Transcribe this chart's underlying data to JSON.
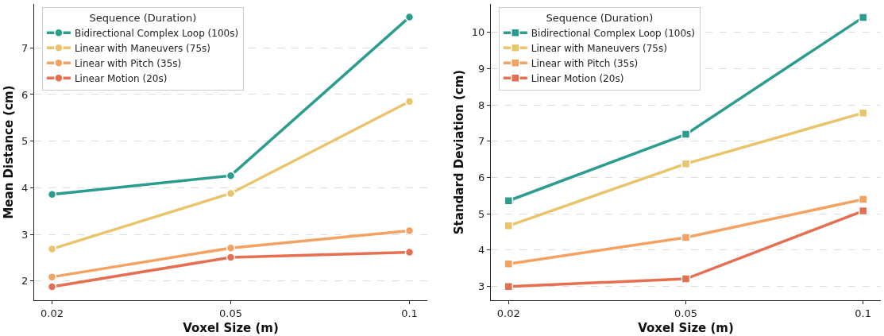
{
  "chart_data": [
    {
      "type": "line",
      "xlabel": "Voxel Size (m)",
      "ylabel": "Mean Distance (cm)",
      "legend_title": "Sequence (Duration)",
      "categories": [
        "0.02",
        "0.05",
        "0.1"
      ],
      "ylim": [
        1.59,
        7.94
      ],
      "yticks": [
        2,
        3,
        4,
        5,
        6,
        7
      ],
      "grid": "y",
      "legend": "top left",
      "marker": "circle",
      "line_style": "solid",
      "series": [
        {
          "name": "Bidirectional Complex Loop (100s)",
          "color": "#2a9d8f",
          "values": [
            3.86,
            4.26,
            7.66
          ]
        },
        {
          "name": "Linear with Maneuvers (75s)",
          "color": "#e9c46a",
          "values": [
            2.69,
            3.88,
            5.85
          ]
        },
        {
          "name": "Linear with Pitch (35s)",
          "color": "#f4a261",
          "values": [
            2.09,
            2.71,
            3.08
          ]
        },
        {
          "name": "Linear Motion (20s)",
          "color": "#e76f51",
          "values": [
            1.88,
            2.51,
            2.62
          ]
        }
      ]
    },
    {
      "type": "line",
      "xlabel": "Voxel Size (m)",
      "ylabel": "Standard Deviation (cm)",
      "legend_title": "Sequence (Duration)",
      "categories": [
        "0.02",
        "0.05",
        "0.1"
      ],
      "ylim": [
        2.62,
        10.78
      ],
      "yticks": [
        3,
        4,
        5,
        6,
        7,
        8,
        9,
        10
      ],
      "grid": "y",
      "legend": "top left",
      "marker": "square",
      "line_style": "solid",
      "series": [
        {
          "name": "Bidirectional Complex Loop (100s)",
          "color": "#2a9d8f",
          "values": [
            5.36,
            7.19,
            10.41
          ]
        },
        {
          "name": "Linear with Maneuvers (75s)",
          "color": "#e9c46a",
          "values": [
            4.67,
            6.38,
            7.78
          ]
        },
        {
          "name": "Linear with Pitch (35s)",
          "color": "#f4a261",
          "values": [
            3.62,
            4.35,
            5.4
          ]
        },
        {
          "name": "Linear Motion (20s)",
          "color": "#e76f51",
          "values": [
            3.0,
            3.21,
            5.08
          ]
        }
      ]
    }
  ]
}
